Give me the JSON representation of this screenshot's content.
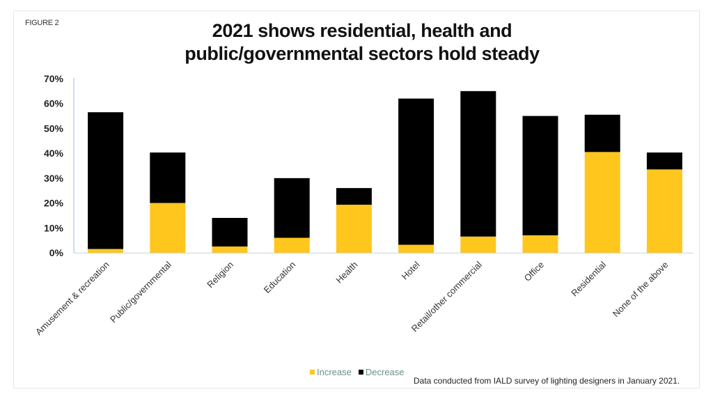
{
  "figure_label": "FIGURE 2",
  "chart_data": {
    "type": "bar",
    "stacked": true,
    "title": "2021 shows residential, health and public/governmental sectors hold steady",
    "title_lines": [
      "2021 shows residential, health and",
      "public/governmental sectors hold steady"
    ],
    "xlabel": "",
    "ylabel": "",
    "ylim": [
      0,
      70
    ],
    "yticks": [
      0,
      10,
      20,
      30,
      40,
      50,
      60,
      70
    ],
    "ytick_labels": [
      "0%",
      "10%",
      "20%",
      "30%",
      "40%",
      "50%",
      "60%",
      "70%"
    ],
    "grid": false,
    "categories": [
      "Amusement & recreation",
      "Public/governmental",
      "Religion",
      "Education",
      "Health",
      "Hotel",
      "Retail/other commercial",
      "Office",
      "Residential",
      "None of the above"
    ],
    "series": [
      {
        "name": "Increase",
        "color": "#ffc61e",
        "values": [
          1.5,
          20,
          2.5,
          6,
          19.3,
          3.2,
          6.5,
          7,
          40.5,
          33.5
        ]
      },
      {
        "name": "Decrease",
        "color": "#000000",
        "values": [
          55,
          20.3,
          11.5,
          24,
          6.7,
          58.8,
          58.5,
          48,
          15,
          6.8
        ]
      }
    ],
    "legend_position": "bottom",
    "source_note": "Data conducted from IALD survey of lighting designers in January 2021."
  },
  "colors": {
    "axis": "#9ab6e8",
    "baseline": "#c8d4e0"
  }
}
